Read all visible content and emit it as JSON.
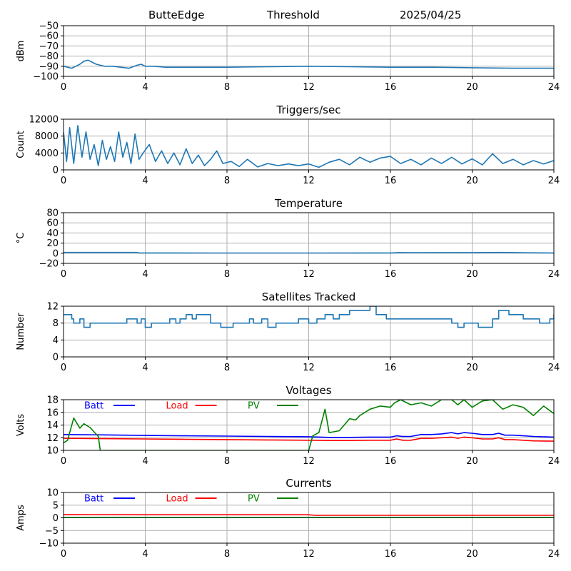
{
  "header": {
    "station": "ButteEdge",
    "panel": "Threshold",
    "date": "2025/04/25"
  },
  "colors": {
    "series_default": "#1f77b4",
    "batt": "#0000ff",
    "load": "#ff0000",
    "pv": "#008000",
    "grid": "#b0b0b0"
  },
  "chart_data": [
    {
      "type": "line",
      "title": "",
      "ylabel": "dBm",
      "xlim": [
        0,
        24
      ],
      "ylim": [
        -100,
        -50
      ],
      "xticks": [
        0,
        4,
        8,
        12,
        16,
        20,
        24
      ],
      "yticks": [
        -100,
        -90,
        -80,
        -70,
        -60,
        -50
      ],
      "grid": true,
      "series": [
        {
          "x": [
            0,
            0.2,
            0.4,
            0.6,
            0.8,
            1.0,
            1.2,
            1.4,
            1.6,
            1.8,
            2.0,
            2.4,
            2.8,
            3.2,
            3.6,
            3.8,
            4.0,
            4.4,
            5,
            6,
            8,
            10,
            12,
            14,
            16,
            18,
            20,
            22,
            24
          ],
          "y": [
            -90,
            -91,
            -92,
            -90,
            -88,
            -85,
            -84,
            -86,
            -88,
            -89,
            -90,
            -90,
            -91,
            -92,
            -89,
            -88,
            -90,
            -90,
            -91,
            -91,
            -91,
            -90.5,
            -90,
            -90.5,
            -91,
            -91,
            -91.5,
            -92,
            -92
          ]
        }
      ]
    },
    {
      "type": "line",
      "title": "Triggers/sec",
      "ylabel": "Count",
      "xlim": [
        0,
        24
      ],
      "ylim": [
        0,
        12000
      ],
      "xticks": [
        0,
        4,
        8,
        12,
        16,
        20,
        24
      ],
      "yticks": [
        0,
        4000,
        8000,
        12000
      ],
      "grid": true,
      "series": [
        {
          "x": [
            0,
            0.15,
            0.3,
            0.5,
            0.7,
            0.9,
            1.1,
            1.3,
            1.5,
            1.7,
            1.9,
            2.1,
            2.3,
            2.5,
            2.7,
            2.9,
            3.1,
            3.3,
            3.5,
            3.7,
            3.9,
            4.2,
            4.5,
            4.8,
            5.1,
            5.4,
            5.7,
            6.0,
            6.3,
            6.6,
            6.9,
            7.2,
            7.5,
            7.8,
            8.2,
            8.6,
            9.0,
            9.5,
            10.0,
            10.5,
            11.0,
            11.5,
            12.0,
            12.5,
            13.0,
            13.5,
            14.0,
            14.5,
            15.0,
            15.5,
            16.0,
            16.5,
            17.0,
            17.5,
            18.0,
            18.5,
            19.0,
            19.5,
            20.0,
            20.5,
            21.0,
            21.5,
            22.0,
            22.5,
            23.0,
            23.5,
            24.0
          ],
          "y": [
            9000,
            2000,
            10000,
            1500,
            10500,
            3000,
            9000,
            2500,
            6000,
            1000,
            7000,
            2500,
            5500,
            2000,
            9000,
            3000,
            6500,
            1500,
            8500,
            2500,
            4000,
            6000,
            2000,
            4500,
            1500,
            4000,
            1200,
            5000,
            1500,
            3500,
            1000,
            2500,
            4500,
            1500,
            2000,
            800,
            2500,
            700,
            1500,
            1000,
            1400,
            1000,
            1400,
            600,
            1800,
            2500,
            1200,
            3000,
            1800,
            2800,
            3200,
            1500,
            2500,
            1200,
            2800,
            1500,
            3000,
            1400,
            2600,
            1200,
            3800,
            1500,
            2500,
            1200,
            2200,
            1400,
            2200
          ]
        }
      ]
    },
    {
      "type": "line",
      "title": "Temperature",
      "ylabel": "°C",
      "xlim": [
        0,
        24
      ],
      "ylim": [
        -20,
        80
      ],
      "xticks": [
        0,
        4,
        8,
        12,
        16,
        20,
        24
      ],
      "yticks": [
        -20,
        0,
        20,
        40,
        60,
        80
      ],
      "grid": true,
      "series": [
        {
          "x": [
            0,
            1,
            2,
            3,
            3.6,
            3.7,
            8,
            12,
            16,
            16.4,
            17,
            20,
            21.5,
            22.8,
            24
          ],
          "y": [
            1.5,
            1.6,
            1.6,
            1.6,
            1.5,
            0.5,
            0.4,
            0.4,
            0.6,
            1.2,
            1.0,
            1.2,
            1.5,
            0.8,
            0.6
          ]
        }
      ]
    },
    {
      "type": "line",
      "title": "Satellites Tracked",
      "ylabel": "Number",
      "xlim": [
        0,
        24
      ],
      "ylim": [
        0,
        12
      ],
      "xticks": [
        0,
        4,
        8,
        12,
        16,
        20,
        24
      ],
      "yticks": [
        0,
        4,
        8,
        12
      ],
      "grid": true,
      "step": true,
      "series": [
        {
          "x": [
            0,
            0.2,
            0.4,
            0.5,
            0.8,
            1.0,
            1.3,
            2.4,
            2.5,
            3.1,
            3.3,
            3.6,
            3.8,
            4.0,
            4.3,
            4.7,
            5.2,
            5.5,
            5.7,
            6.0,
            6.3,
            6.5,
            7.2,
            7.7,
            8.3,
            8.8,
            9.1,
            9.3,
            9.7,
            10.0,
            10.4,
            11.0,
            11.5,
            12.0,
            12.4,
            12.8,
            13.2,
            13.5,
            14.0,
            14.8,
            15.0,
            15.3,
            15.8,
            16.3,
            16.9,
            17.5,
            18.1,
            18.7,
            19.0,
            19.3,
            19.6,
            20.3,
            20.8,
            21.0,
            21.3,
            21.8,
            22.5,
            23.0,
            23.3,
            23.8,
            24.0
          ],
          "y": [
            10,
            10,
            9,
            8,
            9,
            7,
            8,
            8,
            8,
            9,
            9,
            8,
            9,
            7,
            8,
            8,
            9,
            8,
            9,
            10,
            9,
            10,
            8,
            7,
            8,
            8,
            9,
            8,
            9,
            7,
            8,
            8,
            9,
            8,
            9,
            10,
            9,
            10,
            11,
            11,
            12,
            10,
            9,
            9,
            9,
            9,
            9,
            9,
            8,
            7,
            8,
            7,
            7,
            9,
            11,
            10,
            9,
            9,
            8,
            9,
            10
          ]
        }
      ]
    },
    {
      "type": "line",
      "title": "Voltages",
      "ylabel": "Volts",
      "xlim": [
        0,
        24
      ],
      "ylim": [
        10,
        18
      ],
      "xticks": [
        0,
        4,
        8,
        12,
        16,
        20,
        24
      ],
      "yticks": [
        10,
        12,
        14,
        16,
        18
      ],
      "grid": true,
      "legend": "top-left",
      "series": [
        {
          "name": "Batt",
          "color": "#0000ff",
          "x": [
            0,
            2,
            4,
            6,
            8,
            10,
            12,
            13,
            14,
            15,
            16,
            16.3,
            16.6,
            17,
            17.5,
            18,
            18.5,
            19,
            19.3,
            19.6,
            20,
            20.5,
            21,
            21.3,
            21.6,
            22,
            22.5,
            23,
            24
          ],
          "y": [
            12.5,
            12.45,
            12.35,
            12.3,
            12.25,
            12.2,
            12.15,
            12.05,
            12.05,
            12.1,
            12.1,
            12.3,
            12.2,
            12.2,
            12.5,
            12.5,
            12.6,
            12.8,
            12.6,
            12.8,
            12.7,
            12.5,
            12.5,
            12.7,
            12.4,
            12.4,
            12.3,
            12.2,
            12.1
          ]
        },
        {
          "name": "Load",
          "color": "#ff0000",
          "x": [
            0,
            2,
            4,
            6,
            8,
            10,
            12,
            13,
            14,
            15,
            16,
            16.3,
            16.6,
            17,
            17.5,
            18,
            18.5,
            19,
            19.3,
            19.6,
            20,
            20.5,
            21,
            21.3,
            21.6,
            22,
            22.5,
            23,
            24
          ],
          "y": [
            11.9,
            11.85,
            11.8,
            11.75,
            11.7,
            11.65,
            11.6,
            11.55,
            11.55,
            11.6,
            11.6,
            11.8,
            11.6,
            11.6,
            11.9,
            11.9,
            12.0,
            12.1,
            11.9,
            12.1,
            12.0,
            11.8,
            11.8,
            12.0,
            11.7,
            11.7,
            11.6,
            11.5,
            11.45
          ]
        },
        {
          "name": "PV",
          "color": "#008000",
          "x": [
            0,
            0.2,
            0.5,
            0.8,
            1.0,
            1.3,
            1.7,
            1.8,
            12.0,
            12.2,
            12.5,
            12.8,
            13.0,
            13.5,
            14.0,
            14.3,
            14.5,
            15.0,
            15.5,
            16.0,
            16.2,
            16.5,
            17.0,
            17.5,
            18.0,
            18.5,
            19.0,
            19.3,
            19.6,
            20.0,
            20.5,
            21.0,
            21.5,
            22.0,
            22.5,
            23.0,
            23.5,
            24.0
          ],
          "y": [
            11.2,
            11.6,
            15.1,
            13.5,
            14.2,
            13.6,
            12.2,
            10.0,
            10.0,
            12.3,
            12.8,
            16.5,
            12.8,
            13.1,
            15.0,
            14.8,
            15.5,
            16.5,
            17.0,
            16.8,
            17.5,
            18.0,
            17.2,
            17.5,
            17.0,
            18.0,
            18.0,
            17.2,
            18.0,
            16.8,
            17.8,
            18.0,
            16.5,
            17.2,
            16.8,
            15.5,
            17.0,
            15.8
          ]
        }
      ]
    },
    {
      "type": "line",
      "title": "Currents",
      "ylabel": "Amps",
      "xlim": [
        0,
        24
      ],
      "ylim": [
        -10,
        10
      ],
      "xticks": [
        0,
        4,
        8,
        12,
        16,
        20,
        24
      ],
      "yticks": [
        -10,
        -5,
        0,
        5,
        10
      ],
      "grid": true,
      "legend": "top-left",
      "series": [
        {
          "name": "Batt",
          "color": "#0000ff",
          "x": [
            0,
            24
          ],
          "y": [
            0.1,
            0.1
          ]
        },
        {
          "name": "Load",
          "color": "#ff0000",
          "x": [
            0,
            4,
            8,
            12,
            12.3,
            16,
            20,
            24
          ],
          "y": [
            1.3,
            1.2,
            1.2,
            1.2,
            1.0,
            1.0,
            1.0,
            1.0
          ]
        },
        {
          "name": "PV",
          "color": "#008000",
          "x": [
            0,
            24
          ],
          "y": [
            0.2,
            0.2
          ]
        }
      ]
    }
  ]
}
